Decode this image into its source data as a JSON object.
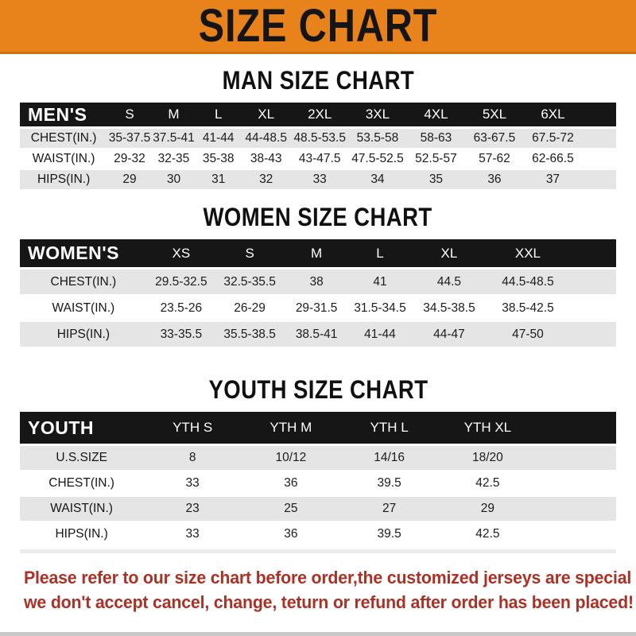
{
  "banner": {
    "title": "SIZE CHART"
  },
  "colors": {
    "banner_bg": "#E8831C",
    "header_bar_bg": "#161616",
    "stripe_row_bg": "#E5E5E5",
    "notice_text": "#A93226"
  },
  "sections": [
    {
      "heading": "MAN SIZE CHART",
      "table": {
        "label": "MEN'S",
        "columns": [
          "S",
          "M",
          "L",
          "XL",
          "2XL",
          "3XL",
          "4XL",
          "5XL",
          "6XL"
        ],
        "rows": [
          {
            "label": "CHEST(IN.)",
            "values": [
              "35-37.5",
              "37.5-41",
              "41-44",
              "44-48.5",
              "48.5-53.5",
              "53.5-58",
              "58-63",
              "63-67.5",
              "67.5-72"
            ]
          },
          {
            "label": "WAIST(IN.)",
            "values": [
              "29-32",
              "32-35",
              "35-38",
              "38-43",
              "43-47.5",
              "47.5-52.5",
              "52.5-57",
              "57-62",
              "62-66.5"
            ]
          },
          {
            "label": "HIPS(IN.)",
            "values": [
              "29",
              "30",
              "31",
              "32",
              "33",
              "34",
              "35",
              "36",
              "37"
            ]
          }
        ]
      }
    },
    {
      "heading": "WOMEN SIZE CHART",
      "table": {
        "label": "WOMEN'S",
        "columns": [
          "XS",
          "S",
          "M",
          "L",
          "XL",
          "XXL"
        ],
        "rows": [
          {
            "label": "CHEST(IN.)",
            "values": [
              "29.5-32.5",
              "32.5-35.5",
              "38",
              "41",
              "44.5",
              "44.5-48.5"
            ]
          },
          {
            "label": "WAIST(IN.)",
            "values": [
              "23.5-26",
              "26-29",
              "29-31.5",
              "31.5-34.5",
              "34.5-38.5",
              "38.5-42.5"
            ]
          },
          {
            "label": "HIPS(IN.)",
            "values": [
              "33-35.5",
              "35.5-38.5",
              "38.5-41",
              "41-44",
              "44-47",
              "47-50"
            ]
          }
        ]
      }
    },
    {
      "heading": "YOUTH SIZE CHART",
      "table": {
        "label": "YOUTH",
        "columns": [
          "YTH S",
          "YTH M",
          "YTH L",
          "YTH XL"
        ],
        "rows": [
          {
            "label": "U.S.SIZE",
            "values": [
              "8",
              "10/12",
              "14/16",
              "18/20"
            ]
          },
          {
            "label": "CHEST(IN.)",
            "values": [
              "33",
              "36",
              "39.5",
              "42.5"
            ]
          },
          {
            "label": "WAIST(IN.)",
            "values": [
              "23",
              "25",
              "27",
              "29"
            ]
          },
          {
            "label": "HIPS(IN.)",
            "values": [
              "33",
              "36",
              "39.5",
              "42.5"
            ]
          }
        ]
      }
    }
  ],
  "footer": {
    "line1": "Please refer to our size chart before order,the customized jerseys are special products,",
    "line2": "we don't accept cancel, change, teturn or refund after order has been placed!"
  }
}
